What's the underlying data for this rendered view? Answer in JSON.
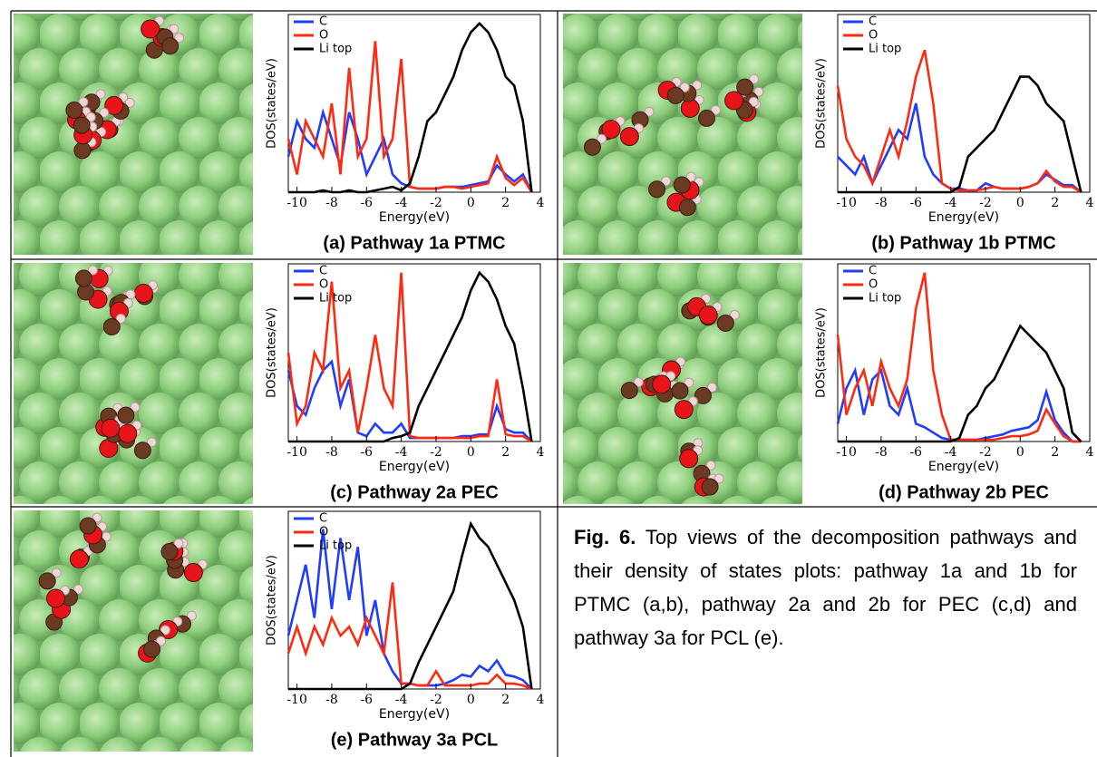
{
  "chart_data": [
    {
      "type": "line",
      "title": "(a) Pathway 1a PTMC",
      "xlabel": "Energy(eV)",
      "ylabel": "DOS(states/eV)",
      "x": [
        -10.5,
        -10,
        -9.5,
        -9,
        -8.5,
        -8,
        -7.5,
        -7,
        -6.5,
        -6,
        -5.5,
        -5,
        -4.5,
        -4,
        -3.5,
        -3,
        -2.5,
        -2,
        -1.5,
        -1,
        -0.5,
        0,
        0.5,
        1,
        1.5,
        2,
        2.5,
        3,
        3.5
      ],
      "xlim": [
        -10.5,
        4
      ],
      "xticks": [
        -10,
        -8,
        -6,
        -4,
        -2,
        0,
        2,
        4
      ],
      "ylim": [
        0,
        10
      ],
      "series": [
        {
          "name": "C",
          "color": "#1f3cff",
          "values": [
            2,
            4,
            3,
            2.5,
            4.5,
            3,
            1.5,
            4.5,
            3,
            1,
            2,
            3,
            1,
            0.5,
            0.3,
            0.2,
            0.2,
            0.2,
            0.3,
            0.3,
            0.3,
            0.4,
            0.5,
            0.6,
            1.5,
            1,
            0.6,
            1,
            0
          ]
        },
        {
          "name": "O",
          "color": "#ff2a10",
          "values": [
            3,
            1,
            4,
            3,
            2,
            5,
            1,
            7,
            2,
            3,
            8.5,
            2,
            3,
            7.5,
            0.3,
            0.2,
            0.2,
            0.2,
            0.3,
            0.3,
            0.2,
            0.3,
            0.4,
            0.5,
            2,
            0.8,
            0.4,
            0.8,
            0
          ]
        },
        {
          "name": "Li top",
          "color": "#000000",
          "values": [
            0,
            0,
            0,
            0,
            0.1,
            0,
            0,
            0.1,
            0,
            0,
            0.1,
            0.2,
            0.3,
            0.1,
            0.5,
            2,
            4,
            4.5,
            5.5,
            6.5,
            8,
            9,
            9.5,
            9,
            8,
            6.5,
            6,
            4,
            0
          ]
        }
      ]
    },
    {
      "type": "line",
      "title": "(b) Pathway 1b PTMC",
      "xlabel": "Energy(eV)",
      "ylabel": "DOS(states/eV)",
      "x": [
        -10.5,
        -10,
        -9.5,
        -9,
        -8.5,
        -8,
        -7.5,
        -7,
        -6.5,
        -6,
        -5.5,
        -5,
        -4.5,
        -4,
        -3.5,
        -3,
        -2.5,
        -2,
        -1.5,
        -1,
        -0.5,
        0,
        0.5,
        1,
        1.5,
        2,
        2.5,
        3,
        3.5
      ],
      "xlim": [
        -10.5,
        4
      ],
      "xticks": [
        -10,
        -8,
        -6,
        -4,
        -2,
        0,
        2,
        4
      ],
      "ylim": [
        0,
        10
      ],
      "series": [
        {
          "name": "C",
          "color": "#1f3cff",
          "values": [
            2,
            1.5,
            1,
            2,
            0.5,
            1.5,
            2.5,
            3.5,
            3,
            5,
            2,
            1,
            0.5,
            0.2,
            0.2,
            0.1,
            0.1,
            0.5,
            0.3,
            0.2,
            0.2,
            0.2,
            0.3,
            0.5,
            1,
            0.7,
            0.4,
            0.4,
            0
          ]
        },
        {
          "name": "O",
          "color": "#ff2a10",
          "values": [
            6,
            3,
            2,
            1.5,
            0.5,
            2,
            3.5,
            2,
            4,
            6.5,
            8,
            5,
            0.5,
            0.2,
            0.1,
            0.1,
            0.1,
            0.2,
            0.3,
            0.2,
            0.2,
            0.2,
            0.3,
            0.5,
            1.2,
            0.6,
            0.3,
            0.3,
            0
          ]
        },
        {
          "name": "Li top",
          "color": "#000000",
          "values": [
            0,
            0,
            0,
            0,
            0,
            0,
            0,
            0,
            0,
            0,
            0,
            0,
            0,
            0,
            0.3,
            2,
            2.5,
            3,
            3.5,
            4.5,
            5.5,
            6.5,
            6.5,
            6,
            5,
            4.5,
            4,
            2,
            0
          ]
        }
      ]
    },
    {
      "type": "line",
      "title": "(c) Pathway 2a PEC",
      "xlabel": "Energy(eV)",
      "ylabel": "DOS(states/eV)",
      "x": [
        -10.5,
        -10,
        -9.5,
        -9,
        -8.5,
        -8,
        -7.5,
        -7,
        -6.5,
        -6,
        -5.5,
        -5,
        -4.5,
        -4,
        -3.5,
        -3,
        -2.5,
        -2,
        -1.5,
        -1,
        -0.5,
        0,
        0.5,
        1,
        1.5,
        2,
        2.5,
        3,
        3.5
      ],
      "xlim": [
        -10.5,
        4
      ],
      "xticks": [
        -10,
        -8,
        -6,
        -4,
        -2,
        0,
        2,
        4
      ],
      "ylim": [
        0,
        10
      ],
      "series": [
        {
          "name": "C",
          "color": "#1f3cff",
          "values": [
            4,
            2,
            1.5,
            3,
            4,
            4.5,
            2,
            3.5,
            0.5,
            0.3,
            1,
            0.5,
            0.5,
            1,
            0.2,
            0.2,
            0.2,
            0.2,
            0.2,
            0.2,
            0.3,
            0.3,
            0.4,
            0.4,
            2,
            0.7,
            0.5,
            0.5,
            0
          ]
        },
        {
          "name": "O",
          "color": "#ff2a10",
          "values": [
            5,
            1,
            2,
            5,
            4,
            9,
            3,
            4,
            0.5,
            3,
            6,
            3,
            2,
            9.5,
            0.3,
            0.2,
            0.2,
            0.2,
            0.2,
            0.2,
            0.2,
            0.2,
            0.3,
            0.3,
            3.5,
            0.4,
            0.3,
            0.3,
            0
          ]
        },
        {
          "name": "Li top",
          "color": "#000000",
          "values": [
            0,
            0,
            0,
            0,
            0,
            0,
            0,
            0,
            0,
            0,
            0,
            0,
            0.2,
            0.3,
            0.5,
            2,
            3,
            4,
            5,
            6,
            7,
            8.5,
            9.5,
            9,
            8,
            6.5,
            5.5,
            3,
            0
          ]
        }
      ]
    },
    {
      "type": "line",
      "title": "(d) Pathway 2b PEC",
      "xlabel": "Energy(eV)",
      "ylabel": "DOS(states/eV)",
      "x": [
        -10.5,
        -10,
        -9.5,
        -9,
        -8.5,
        -8,
        -7.5,
        -7,
        -6.5,
        -6,
        -5.5,
        -5,
        -4.5,
        -4,
        -3.5,
        -3,
        -2.5,
        -2,
        -1.5,
        -1,
        -0.5,
        0,
        0.5,
        1,
        1.5,
        2,
        2.5,
        3,
        3.5
      ],
      "xlim": [
        -10.5,
        4
      ],
      "xticks": [
        -10,
        -8,
        -6,
        -4,
        -2,
        0,
        2,
        4
      ],
      "ylim": [
        0,
        10
      ],
      "series": [
        {
          "name": "C",
          "color": "#1f3cff",
          "values": [
            1,
            3,
            4,
            1.5,
            3.5,
            4,
            2,
            1.5,
            3,
            1,
            0.8,
            0.5,
            0.2,
            0.1,
            0.1,
            0.1,
            0.1,
            0.2,
            0.3,
            0.4,
            0.6,
            0.7,
            0.8,
            1.2,
            2.8,
            1.2,
            0.5,
            0,
            0
          ]
        },
        {
          "name": "O",
          "color": "#ff2a10",
          "values": [
            6,
            1.5,
            3,
            4,
            2,
            4.5,
            3,
            2,
            3.5,
            7.5,
            9.5,
            4,
            1.5,
            0.1,
            0.1,
            0.1,
            0.1,
            0.1,
            0.1,
            0.2,
            0.3,
            0.3,
            0.4,
            0.6,
            1.8,
            1,
            0.3,
            0,
            0
          ]
        },
        {
          "name": "Li top",
          "color": "#000000",
          "values": [
            0,
            0,
            0,
            0,
            0,
            0,
            0,
            0,
            0,
            0,
            0,
            0,
            0,
            0,
            0.2,
            1.5,
            2,
            3,
            3.5,
            4.5,
            5.5,
            6.5,
            6,
            5.5,
            5,
            4,
            3,
            0.5,
            0
          ]
        }
      ]
    },
    {
      "type": "line",
      "title": "(e) Pathway 3a PCL",
      "xlabel": "Energy(eV)",
      "ylabel": "DOS(states/eV)",
      "x": [
        -10.5,
        -10,
        -9.5,
        -9,
        -8.5,
        -8,
        -7.5,
        -7,
        -6.5,
        -6,
        -5.5,
        -5,
        -4.5,
        -4,
        -3.5,
        -3,
        -2.5,
        -2,
        -1.5,
        -1,
        -0.5,
        0,
        0.5,
        1,
        1.5,
        2,
        2.5,
        3,
        3.5
      ],
      "xlim": [
        -10.5,
        4
      ],
      "xticks": [
        -10,
        -8,
        -6,
        -4,
        -2,
        0,
        2,
        4
      ],
      "ylim": [
        0,
        10
      ],
      "series": [
        {
          "name": "C",
          "color": "#1f3cff",
          "values": [
            3,
            5,
            7,
            4,
            9,
            4.5,
            8.5,
            5,
            8,
            3,
            5,
            2,
            1,
            0.3,
            0.3,
            0.2,
            0.2,
            0.2,
            0.3,
            0.5,
            0.8,
            0.7,
            1.3,
            1,
            1.6,
            0.8,
            0.7,
            0.5,
            0
          ]
        },
        {
          "name": "O",
          "color": "#ff2a10",
          "values": [
            2,
            3.5,
            2,
            3.5,
            2.5,
            4,
            3,
            3.5,
            2.5,
            4,
            3,
            2,
            6,
            0.3,
            0.3,
            0.2,
            0.2,
            1,
            0.2,
            0.2,
            0.2,
            0.2,
            0.3,
            0.3,
            0.8,
            0.3,
            0.3,
            0.2,
            0
          ]
        },
        {
          "name": "Li top",
          "color": "#000000",
          "values": [
            0,
            0,
            0,
            0,
            0,
            0,
            0,
            0,
            0,
            0,
            0,
            0,
            0,
            0,
            0.3,
            1.5,
            2.5,
            3.5,
            4.5,
            5.5,
            7.5,
            9.3,
            8.5,
            8,
            7,
            6,
            5,
            3.5,
            0
          ]
        }
      ]
    }
  ],
  "figure_caption": {
    "label": "Fig. 6.",
    "text": "Top views of the decomposition pathways and their density of states plots: pathway 1a and 1b for PTMC (a,b), pathway 2a and 2b for PEC (c,d) and pathway 3a for PCL (e)."
  }
}
